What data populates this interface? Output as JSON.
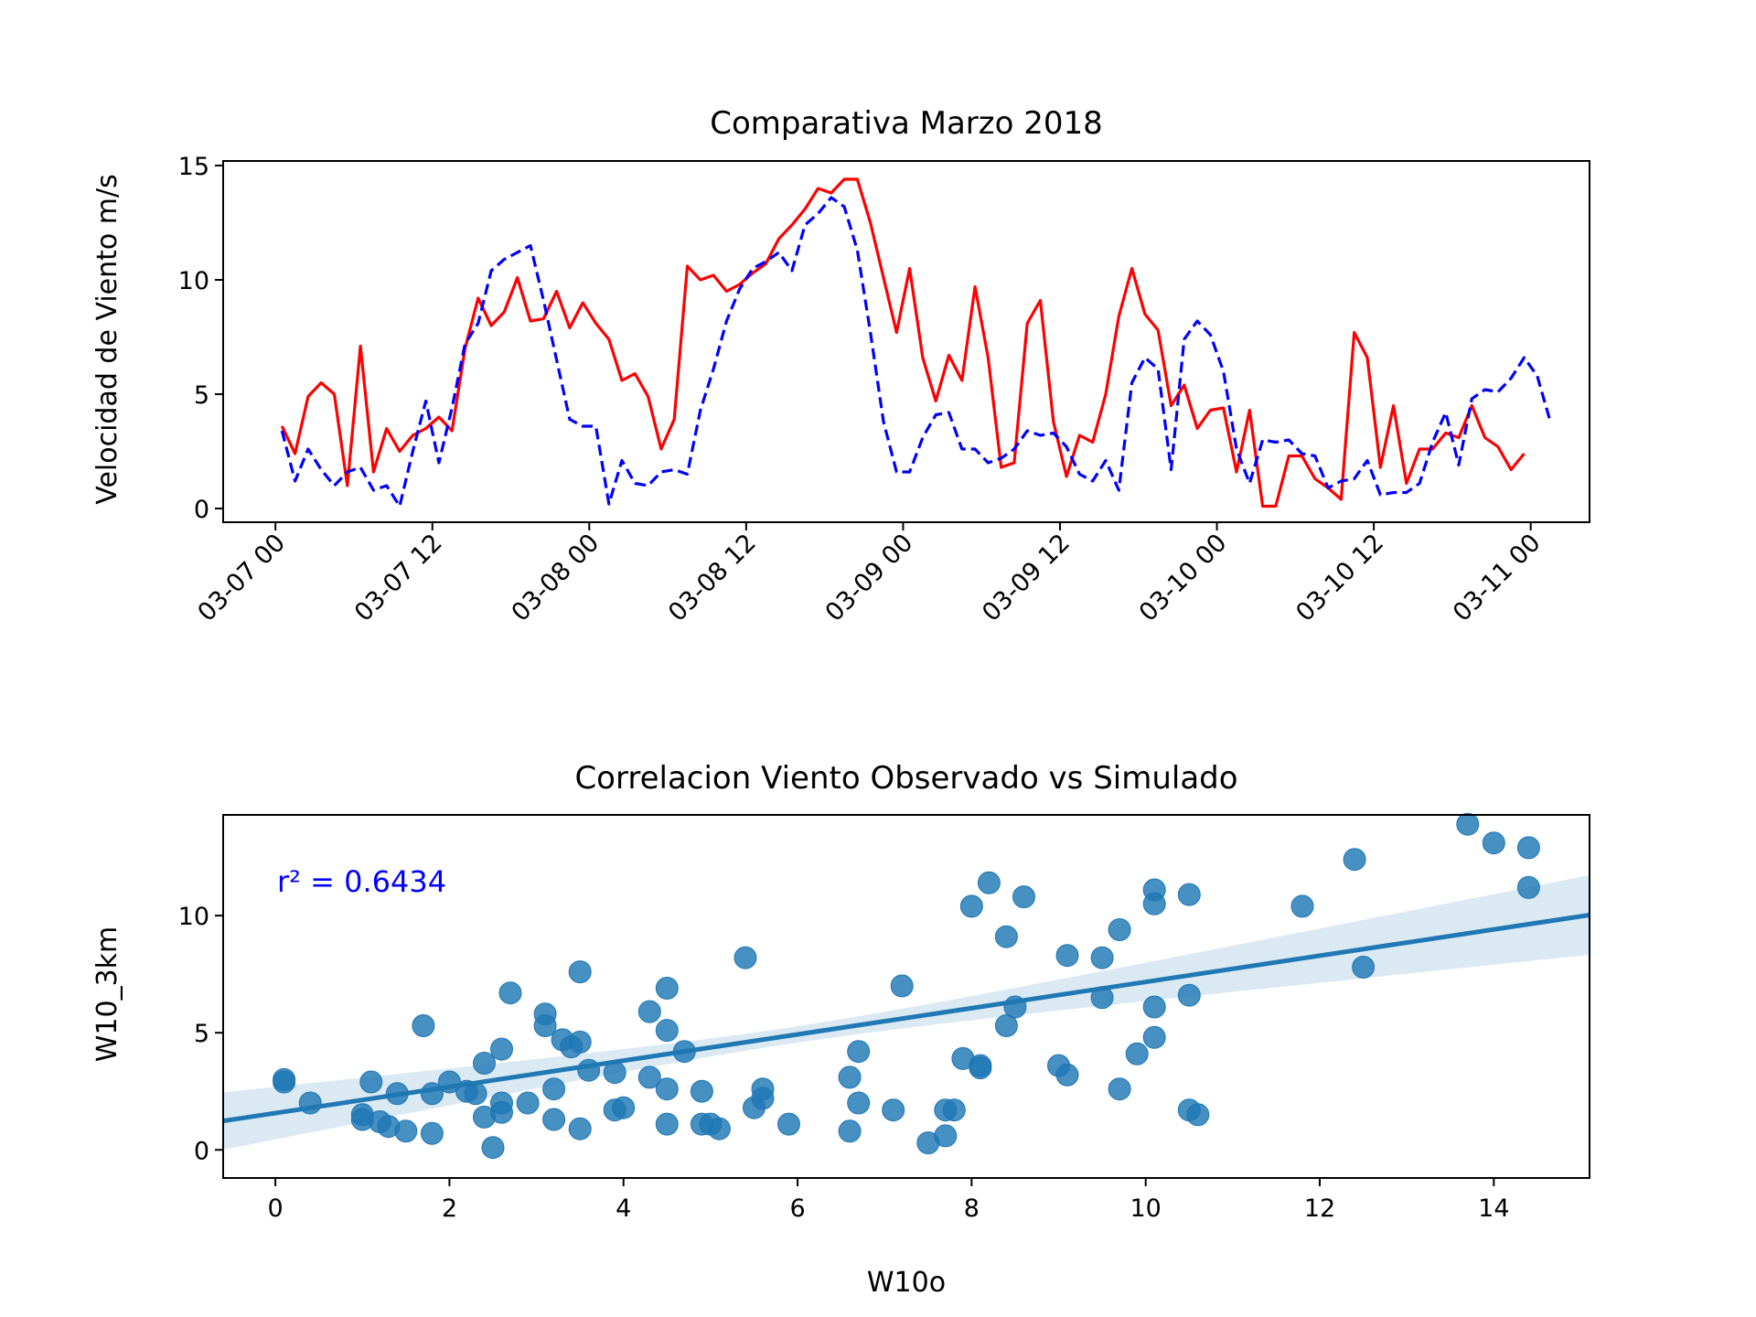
{
  "colors": {
    "observed": "#ff0000",
    "simulated": "#0000ff",
    "scatter": "#1f77b4",
    "annotation": "#0000ff"
  },
  "chart_data": [
    {
      "type": "line",
      "title": "Comparativa Marzo 2018",
      "xlabel": "",
      "ylabel": "Velocidad de Viento m/s",
      "x_start": "2018-03-07 00:30",
      "x_step_hours": 1,
      "xlim": [
        "2018-03-06 20:00",
        "2018-03-11 04:30"
      ],
      "ylim": [
        -0.6,
        15.2
      ],
      "yticks": [
        0,
        5,
        10,
        15
      ],
      "xtick_labels": [
        "03-07 00",
        "03-07 12",
        "03-08 00",
        "03-08 12",
        "03-09 00",
        "03-09 12",
        "03-10 00",
        "03-10 12",
        "03-11 00"
      ],
      "grid": false,
      "legend": "none",
      "series": [
        {
          "style": "solid",
          "values": [
            3.6,
            2.4,
            4.9,
            5.5,
            5.0,
            1.0,
            7.1,
            1.6,
            3.5,
            2.5,
            3.2,
            3.5,
            4.0,
            3.4,
            7.0,
            9.2,
            8.0,
            8.6,
            10.1,
            8.2,
            8.3,
            9.5,
            7.9,
            9.0,
            8.1,
            7.4,
            5.6,
            5.9,
            4.9,
            2.6,
            3.9,
            10.6,
            10.0,
            10.2,
            9.5,
            9.8,
            10.3,
            10.7,
            11.8,
            12.4,
            13.1,
            14.0,
            13.8,
            14.4,
            14.4,
            12.5,
            10.1,
            7.7,
            10.5,
            6.6,
            4.7,
            6.7,
            5.6,
            9.7,
            6.6,
            1.8,
            2.0,
            8.1,
            9.1,
            3.8,
            1.4,
            3.2,
            2.9,
            5.0,
            8.4,
            10.5,
            8.5,
            7.8,
            4.5,
            5.4,
            3.5,
            4.3,
            4.4,
            1.6,
            4.3,
            0.1,
            0.1,
            2.3,
            2.3,
            1.3,
            0.9,
            0.4,
            7.7,
            6.6,
            1.8,
            4.5,
            1.1,
            2.6,
            2.6,
            3.3,
            3.1,
            4.5,
            3.1,
            2.7,
            1.7,
            2.4
          ]
        },
        {
          "style": "dashed",
          "values": [
            3.4,
            1.2,
            2.6,
            1.7,
            1.0,
            1.6,
            1.8,
            0.8,
            1.0,
            0.1,
            2.5,
            4.7,
            2.0,
            4.4,
            7.2,
            8.1,
            10.4,
            10.9,
            11.2,
            11.5,
            9.1,
            6.5,
            3.9,
            3.6,
            3.6,
            0.2,
            2.1,
            1.1,
            1.0,
            1.6,
            1.7,
            1.5,
            4.3,
            6.1,
            8.2,
            9.6,
            10.5,
            10.8,
            11.2,
            10.4,
            12.4,
            12.9,
            13.6,
            13.2,
            11.3,
            7.7,
            3.8,
            1.6,
            1.6,
            3.1,
            4.1,
            4.2,
            2.6,
            2.6,
            2.0,
            2.2,
            2.6,
            3.4,
            3.2,
            3.3,
            2.7,
            1.5,
            1.2,
            2.1,
            0.8,
            5.5,
            6.6,
            6.1,
            1.7,
            7.4,
            8.2,
            7.6,
            6.0,
            2.6,
            1.1,
            3.0,
            2.9,
            3.0,
            2.4,
            2.3,
            0.9,
            1.2,
            1.3,
            2.1,
            0.6,
            0.7,
            0.7,
            1.1,
            2.9,
            4.2,
            1.9,
            4.8,
            5.2,
            5.1,
            5.7,
            6.6,
            5.8,
            3.8
          ]
        }
      ]
    },
    {
      "type": "scatter",
      "title": "Correlacion Viento Observado vs Simulado",
      "xlabel": "W10o",
      "ylabel": "W10_3km",
      "xlim": [
        -0.6,
        15.1
      ],
      "ylim": [
        -1.2,
        14.3
      ],
      "xticks": [
        0,
        2,
        4,
        6,
        8,
        10,
        12,
        14
      ],
      "yticks": [
        0,
        5,
        10
      ],
      "grid": false,
      "legend": "none",
      "annotation": {
        "r2_label": "r² = 0.6434"
      },
      "regression": {
        "intercept": 1.57,
        "slope": 0.56,
        "ci_halfwidth_at_mean": 0.35,
        "ci_halfwidth_at_ends": 1.7
      },
      "points": [
        [
          0.1,
          3.0
        ],
        [
          0.1,
          2.9
        ],
        [
          0.4,
          2.0
        ],
        [
          1.0,
          1.5
        ],
        [
          1.0,
          1.3
        ],
        [
          1.1,
          2.9
        ],
        [
          1.2,
          1.2
        ],
        [
          1.3,
          1.0
        ],
        [
          1.4,
          2.4
        ],
        [
          1.5,
          0.8
        ],
        [
          1.7,
          5.3
        ],
        [
          1.8,
          0.7
        ],
        [
          1.8,
          2.4
        ],
        [
          2.0,
          2.9
        ],
        [
          2.2,
          2.5
        ],
        [
          2.3,
          2.4
        ],
        [
          2.4,
          3.7
        ],
        [
          2.4,
          1.4
        ],
        [
          2.5,
          0.1
        ],
        [
          2.6,
          4.3
        ],
        [
          2.6,
          2.0
        ],
        [
          2.6,
          1.6
        ],
        [
          2.7,
          6.7
        ],
        [
          2.9,
          2.0
        ],
        [
          3.1,
          5.8
        ],
        [
          3.1,
          5.3
        ],
        [
          3.2,
          2.6
        ],
        [
          3.2,
          1.3
        ],
        [
          3.3,
          4.7
        ],
        [
          3.4,
          4.4
        ],
        [
          3.5,
          7.6
        ],
        [
          3.5,
          4.6
        ],
        [
          3.5,
          0.9
        ],
        [
          3.6,
          3.4
        ],
        [
          3.9,
          3.3
        ],
        [
          3.9,
          1.7
        ],
        [
          4.0,
          1.8
        ],
        [
          4.3,
          5.9
        ],
        [
          4.3,
          3.1
        ],
        [
          4.5,
          6.9
        ],
        [
          4.5,
          5.1
        ],
        [
          4.5,
          2.6
        ],
        [
          4.5,
          1.1
        ],
        [
          4.7,
          4.2
        ],
        [
          4.9,
          2.5
        ],
        [
          4.9,
          1.1
        ],
        [
          5.0,
          1.1
        ],
        [
          5.1,
          0.9
        ],
        [
          5.4,
          8.2
        ],
        [
          5.5,
          1.8
        ],
        [
          5.6,
          2.6
        ],
        [
          5.6,
          2.2
        ],
        [
          5.9,
          1.1
        ],
        [
          6.6,
          3.1
        ],
        [
          6.6,
          0.8
        ],
        [
          6.7,
          4.2
        ],
        [
          6.7,
          2.0
        ],
        [
          7.1,
          1.7
        ],
        [
          7.2,
          7.0
        ],
        [
          7.5,
          0.3
        ],
        [
          7.7,
          1.7
        ],
        [
          7.7,
          0.6
        ],
        [
          7.8,
          1.7
        ],
        [
          7.9,
          3.9
        ],
        [
          8.0,
          10.4
        ],
        [
          8.1,
          3.6
        ],
        [
          8.1,
          3.5
        ],
        [
          8.2,
          11.4
        ],
        [
          8.4,
          9.1
        ],
        [
          8.4,
          5.3
        ],
        [
          8.5,
          6.1
        ],
        [
          8.6,
          10.8
        ],
        [
          9.0,
          3.6
        ],
        [
          9.1,
          8.3
        ],
        [
          9.1,
          3.2
        ],
        [
          9.5,
          8.2
        ],
        [
          9.5,
          6.5
        ],
        [
          9.7,
          9.4
        ],
        [
          9.7,
          2.6
        ],
        [
          9.9,
          4.1
        ],
        [
          10.1,
          11.1
        ],
        [
          10.1,
          10.5
        ],
        [
          10.1,
          6.1
        ],
        [
          10.1,
          4.8
        ],
        [
          10.5,
          10.9
        ],
        [
          10.5,
          6.6
        ],
        [
          10.5,
          1.7
        ],
        [
          10.6,
          1.5
        ],
        [
          11.8,
          10.4
        ],
        [
          12.4,
          12.4
        ],
        [
          12.5,
          7.8
        ],
        [
          13.7,
          13.9
        ],
        [
          14.0,
          13.1
        ],
        [
          14.4,
          12.9
        ],
        [
          14.4,
          11.2
        ]
      ]
    }
  ]
}
